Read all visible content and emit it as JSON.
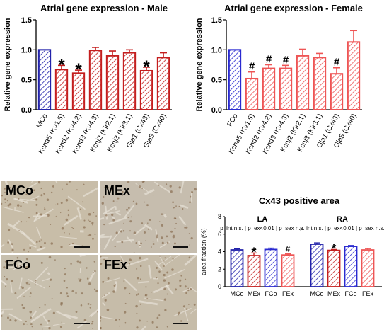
{
  "charts": [
    {
      "id": "male",
      "type": "bar",
      "title": "Atrial gene expression - Male",
      "ylabel": "Relative gene expression",
      "ylim": [
        0,
        1.5
      ],
      "yticks": [
        "0.0",
        "0.5",
        "1.0",
        "1.5"
      ],
      "categories": [
        "MCo",
        "Kcna5 (Kv1.5)",
        "Kcnd2 (Kv4.2)",
        "Kcnd3 (Kv4.3)",
        "Kcnj2 (Kir2.1)",
        "Kcnj3 (Kir3.1)",
        "Gja1 (Cx43)",
        "Gja5 (Cx40)"
      ],
      "values": [
        1.0,
        0.67,
        0.61,
        0.99,
        0.9,
        0.95,
        0.65,
        0.87
      ],
      "errors": [
        0.0,
        0.07,
        0.05,
        0.05,
        0.08,
        0.05,
        0.06,
        0.08
      ],
      "markers": [
        "",
        "*",
        "*",
        "",
        "",
        "",
        "*",
        ""
      ],
      "colors": [
        "#2222aa",
        "#c41e1e",
        "#c41e1e",
        "#c41e1e",
        "#c41e1e",
        "#c41e1e",
        "#c41e1e",
        "#c41e1e"
      ]
    },
    {
      "id": "female",
      "type": "bar",
      "title": "Atrial gene expression - Female",
      "ylabel": "Relative gene expression",
      "ylim": [
        0,
        1.5
      ],
      "yticks": [
        "0.0",
        "0.5",
        "1.0",
        "1.5"
      ],
      "categories": [
        "FCo",
        "Kcna5 (Kv1.5)",
        "Kcnd2 (Kv4.2)",
        "Kcnd3 (Kv4.3)",
        "Kcnj2 (Kir2.1)",
        "Kcnj3 (Kir3.1)",
        "Gja1 (Cx43)",
        "Gja5 (Cx40)"
      ],
      "values": [
        1.0,
        0.52,
        0.69,
        0.69,
        0.9,
        0.87,
        0.6,
        1.13
      ],
      "errors": [
        0.0,
        0.11,
        0.06,
        0.05,
        0.11,
        0.07,
        0.1,
        0.19
      ],
      "markers": [
        "",
        "#",
        "#",
        "#",
        "",
        "",
        "#",
        ""
      ],
      "colors": [
        "#2a2ad0",
        "#ee5555",
        "#ee5555",
        "#ee5555",
        "#ee5555",
        "#ee5555",
        "#ee5555",
        "#ee5555"
      ]
    },
    {
      "id": "cx43",
      "type": "bar",
      "title": "Cx43 positive area",
      "ylabel": "area fraction (%)",
      "ylim": [
        0,
        8
      ],
      "yticks": [
        "0",
        "2",
        "4",
        "6",
        "8"
      ],
      "groups": [
        "LA",
        "RA"
      ],
      "stats": "p_int n.s. | p_ex<0.01 | p_sex n.s.",
      "categories": [
        "MCo",
        "MEx",
        "FCo",
        "FEx"
      ],
      "series": [
        {
          "name": "LA",
          "values": [
            4.2,
            3.55,
            4.25,
            3.62
          ],
          "errors": [
            0.12,
            0.3,
            0.15,
            0.12
          ],
          "markers": [
            "",
            "*",
            "",
            "#"
          ]
        },
        {
          "name": "RA",
          "values": [
            4.85,
            4.15,
            4.6,
            4.2
          ],
          "errors": [
            0.15,
            0.1,
            0.1,
            0.15
          ],
          "markers": [
            "",
            "*",
            "",
            ""
          ]
        }
      ],
      "colors": [
        "#2222aa",
        "#c41e1e",
        "#2a2ad0",
        "#ee5555"
      ]
    }
  ],
  "histology": {
    "panels": [
      "MCo",
      "MEx",
      "FCo",
      "FEx"
    ]
  }
}
